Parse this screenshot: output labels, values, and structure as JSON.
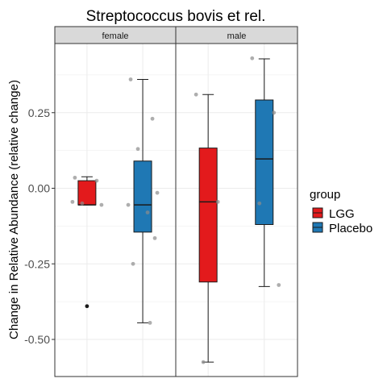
{
  "chart_data": {
    "type": "boxplot",
    "title": "Streptococcus bovis et rel.",
    "xlabel": "",
    "ylabel": "Change in Relative Abundance (relative change)",
    "ylim": [
      -0.62,
      0.47
    ],
    "yticks": [
      0.25,
      0.0,
      -0.25,
      -0.5
    ],
    "ytick_labels": [
      "0.25",
      "0.00",
      "-0.25",
      "-0.50"
    ],
    "facets": [
      "female",
      "male"
    ],
    "legend": {
      "title": "group",
      "position": "right",
      "entries": [
        {
          "name": "LGG",
          "color": "#e31a1c"
        },
        {
          "name": "Placebo",
          "color": "#1f78b4"
        }
      ]
    },
    "boxes": [
      {
        "facet": "female",
        "group": "LGG",
        "min": -0.055,
        "q1": -0.055,
        "median": -0.055,
        "q3": 0.025,
        "max": 0.038,
        "outliers": [
          -0.39
        ]
      },
      {
        "facet": "female",
        "group": "Placebo",
        "min": -0.445,
        "q1": -0.145,
        "median": -0.055,
        "q3": 0.09,
        "max": 0.36,
        "outliers": []
      },
      {
        "facet": "male",
        "group": "LGG",
        "min": -0.575,
        "q1": -0.31,
        "median": -0.045,
        "q3": 0.133,
        "max": 0.31,
        "outliers": []
      },
      {
        "facet": "male",
        "group": "Placebo",
        "min": -0.325,
        "q1": -0.12,
        "median": 0.097,
        "q3": 0.292,
        "max": 0.428,
        "outliers": []
      }
    ],
    "points": [
      {
        "facet": "female",
        "group": "LGG",
        "values": [
          0.035,
          0.025,
          -0.05,
          -0.055,
          -0.045
        ]
      },
      {
        "facet": "female",
        "group": "Placebo",
        "values": [
          0.36,
          0.23,
          0.13,
          -0.015,
          -0.055,
          -0.08,
          -0.165,
          -0.25,
          -0.445
        ]
      },
      {
        "facet": "male",
        "group": "LGG",
        "values": [
          0.31,
          -0.045,
          -0.575
        ]
      },
      {
        "facet": "male",
        "group": "Placebo",
        "values": [
          0.43,
          0.25,
          -0.05,
          -0.32
        ]
      }
    ]
  }
}
